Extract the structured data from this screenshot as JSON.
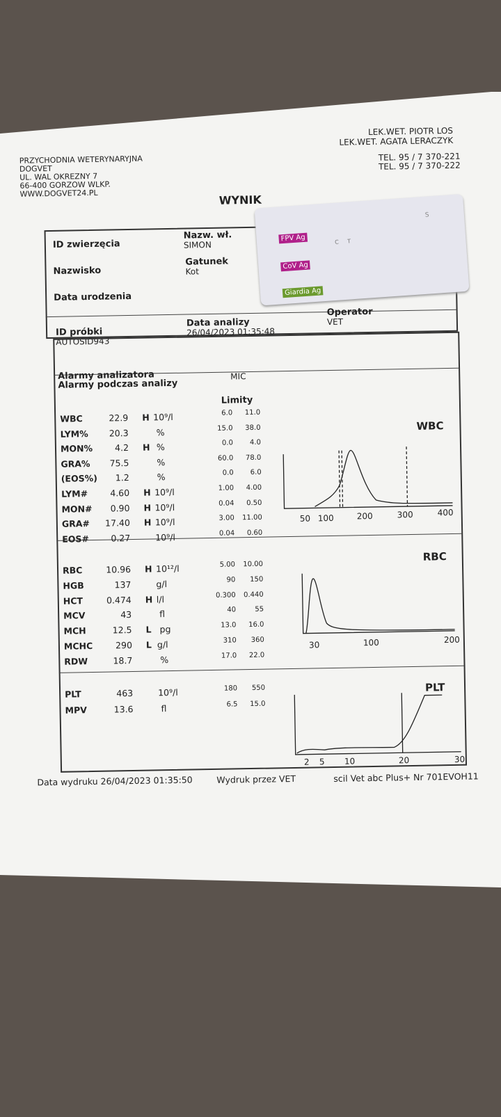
{
  "clinic": [
    "PRZYCHODNIA WETERYNARYJNA",
    "DOGVET",
    "UL. WAL OKREZNY 7",
    "66-400 GORZOW WLKP.",
    "WWW.DOGVET24.PL"
  ],
  "doctors": [
    "LEK.WET. PIOTR LOS",
    "LEK.WET. AGATA LERACZYK"
  ],
  "phones": [
    "TEL. 95 / 7 370-221",
    "TEL. 95 / 7 370-222"
  ],
  "title": "WYNIK",
  "info": {
    "id_label": "ID zwierzęcia",
    "owner_label": "Nazw. wł.",
    "owner": "SIMON",
    "name_label": "Nazwisko",
    "species_label": "Gatunek",
    "species": "Kot",
    "birth_label": "Data urodzenia",
    "sample_label": "ID próbki",
    "sample": "AUTOSID943",
    "date_label": "Data analizy",
    "date": "26/04/2023 01:35:48",
    "operator_label": "Operator",
    "operator": "VET"
  },
  "test_strip": {
    "tests": [
      "FPV Ag",
      "CoV Ag",
      "Giardia Ag"
    ],
    "c": "C",
    "t": "T",
    "s": "S"
  },
  "alarms": {
    "analyzer": "Alarmy analizatora",
    "during": "Alarmy podczas analizy",
    "value": "MIC"
  },
  "limits_label": "Limity",
  "groups": [
    {
      "rows": [
        [
          "WBC",
          "22.9",
          "H",
          "10⁹/l",
          "6.0",
          "11.0"
        ],
        [
          "LYM%",
          "20.3",
          "",
          "%",
          "15.0",
          "38.0"
        ],
        [
          "MON%",
          "4.2",
          "H",
          "%",
          "0.0",
          "4.0"
        ],
        [
          "GRA%",
          "75.5",
          "",
          "%",
          "60.0",
          "78.0"
        ],
        [
          "(EOS%)",
          "1.2",
          "",
          "%",
          "0.0",
          "6.0"
        ],
        [
          "LYM#",
          "4.60",
          "H",
          "10⁹/l",
          "1.00",
          "4.00"
        ],
        [
          "MON#",
          "0.90",
          "H",
          "10⁹/l",
          "0.04",
          "0.50"
        ],
        [
          "GRA#",
          "17.40",
          "H",
          "10⁹/l",
          "3.00",
          "11.00"
        ],
        [
          "EOS#",
          "0.27",
          "",
          "10⁹/l",
          "0.04",
          "0.60"
        ]
      ]
    },
    {
      "rows": [
        [
          "RBC",
          "10.96",
          "H",
          "10¹²/l",
          "5.00",
          "10.00"
        ],
        [
          "HGB",
          "137",
          "",
          "g/l",
          "90",
          "150"
        ],
        [
          "HCT",
          "0.474",
          "H",
          "l/l",
          "0.300",
          "0.440"
        ],
        [
          "MCV",
          "43",
          "",
          "fl",
          "40",
          "55"
        ],
        [
          "MCH",
          "12.5",
          "L",
          "pg",
          "13.0",
          "16.0"
        ],
        [
          "MCHC",
          "290",
          "L",
          "g/l",
          "310",
          "360"
        ],
        [
          "RDW",
          "18.7",
          "",
          "%",
          "17.0",
          "22.0"
        ]
      ]
    },
    {
      "rows": [
        [
          "PLT",
          "463",
          "",
          "10⁹/l",
          "180",
          "550"
        ],
        [
          "MPV",
          "13.6",
          "",
          "fl",
          "6.5",
          "15.0"
        ]
      ]
    }
  ],
  "histograms": [
    {
      "label": "WBC",
      "ticks": [
        "50",
        "100",
        "200",
        "300",
        "400"
      ]
    },
    {
      "label": "RBC",
      "ticks": [
        "30",
        "100",
        "200"
      ]
    },
    {
      "label": "PLT",
      "ticks": [
        "2",
        "5",
        "10",
        "20",
        "30"
      ]
    }
  ],
  "footer": [
    "Data wydruku 26/04/2023 01:35:50",
    "Wydruk przez VET",
    "scil Vet abc Plus+ Nr 701EVOH11"
  ]
}
